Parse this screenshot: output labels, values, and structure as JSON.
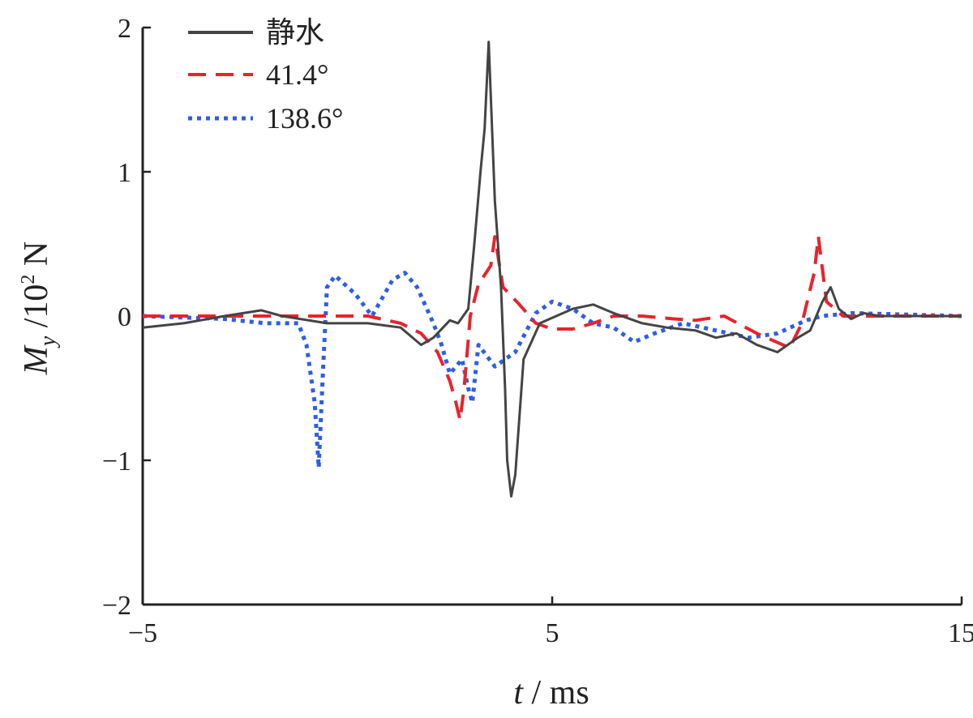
{
  "chart_data": {
    "type": "line",
    "xlabel": {
      "var": "t",
      "unit": "ms"
    },
    "ylabel": {
      "var": "M",
      "sub": "y",
      "unit_base": "10",
      "unit_exp": "2",
      "unit": "N"
    },
    "xlim": [
      -5,
      15
    ],
    "ylim": [
      -2,
      2
    ],
    "xticks": [
      -5,
      5,
      15
    ],
    "yticks": [
      -2,
      -1,
      0,
      1,
      2
    ],
    "x_tick_labels": [
      "−5",
      "5",
      "15"
    ],
    "y_tick_labels": [
      "−2",
      "−1",
      "0",
      "1",
      "2"
    ],
    "legend_position": "top-left",
    "series": [
      {
        "name": "静水",
        "color": "#444444",
        "style": "solid",
        "points": [
          [
            -5,
            -0.08
          ],
          [
            -4,
            -0.05
          ],
          [
            -3,
            0
          ],
          [
            -2.1,
            0.04
          ],
          [
            -1.6,
            0
          ],
          [
            -0.5,
            -0.05
          ],
          [
            0.5,
            -0.05
          ],
          [
            1.3,
            -0.08
          ],
          [
            1.8,
            -0.2
          ],
          [
            2.1,
            -0.15
          ],
          [
            2.5,
            -0.03
          ],
          [
            2.7,
            -0.05
          ],
          [
            2.95,
            0.05
          ],
          [
            3.1,
            0.5
          ],
          [
            3.25,
            1.0
          ],
          [
            3.35,
            1.3
          ],
          [
            3.45,
            1.9
          ],
          [
            3.6,
            0.8
          ],
          [
            3.75,
            0.2
          ],
          [
            3.85,
            -0.5
          ],
          [
            3.9,
            -1.0
          ],
          [
            4.0,
            -1.25
          ],
          [
            4.1,
            -1.1
          ],
          [
            4.3,
            -0.3
          ],
          [
            4.7,
            -0.05
          ],
          [
            5.5,
            0.05
          ],
          [
            6.0,
            0.08
          ],
          [
            6.5,
            0.02
          ],
          [
            7.2,
            -0.05
          ],
          [
            7.8,
            -0.08
          ],
          [
            8.5,
            -0.1
          ],
          [
            9.0,
            -0.15
          ],
          [
            9.5,
            -0.12
          ],
          [
            10.0,
            -0.2
          ],
          [
            10.5,
            -0.25
          ],
          [
            11.0,
            -0.15
          ],
          [
            11.3,
            -0.1
          ],
          [
            11.6,
            0.1
          ],
          [
            11.8,
            0.2
          ],
          [
            12.0,
            0.05
          ],
          [
            12.3,
            -0.02
          ],
          [
            12.6,
            0.02
          ],
          [
            13,
            0
          ],
          [
            14,
            0
          ],
          [
            15,
            0
          ]
        ]
      },
      {
        "name": "41.4°",
        "color": "#e8232b",
        "style": "dashed",
        "points": [
          [
            -5,
            0
          ],
          [
            -3,
            0
          ],
          [
            -1,
            0
          ],
          [
            0.5,
            0
          ],
          [
            1.3,
            -0.05
          ],
          [
            1.8,
            -0.12
          ],
          [
            2.2,
            -0.25
          ],
          [
            2.5,
            -0.45
          ],
          [
            2.65,
            -0.6
          ],
          [
            2.75,
            -0.72
          ],
          [
            2.85,
            -0.5
          ],
          [
            3.0,
            0
          ],
          [
            3.2,
            0.22
          ],
          [
            3.5,
            0.35
          ],
          [
            3.6,
            0.55
          ],
          [
            3.8,
            0.2
          ],
          [
            4.2,
            0.08
          ],
          [
            4.6,
            -0.05
          ],
          [
            5.0,
            -0.09
          ],
          [
            5.5,
            -0.09
          ],
          [
            6.0,
            -0.05
          ],
          [
            6.5,
            0
          ],
          [
            7.2,
            0
          ],
          [
            8,
            -0.02
          ],
          [
            8.5,
            -0.03
          ],
          [
            9.2,
            0
          ],
          [
            10.0,
            -0.12
          ],
          [
            10.8,
            -0.22
          ],
          [
            11.1,
            -0.05
          ],
          [
            11.4,
            0.3
          ],
          [
            11.5,
            0.55
          ],
          [
            11.7,
            0.1
          ],
          [
            12.1,
            0
          ],
          [
            15,
            0
          ]
        ]
      },
      {
        "name": "138.6°",
        "color": "#2e5ee6",
        "style": "dotted",
        "points": [
          [
            -5,
            0
          ],
          [
            -3,
            -0.02
          ],
          [
            -2,
            -0.05
          ],
          [
            -1.2,
            -0.05
          ],
          [
            -1.0,
            -0.2
          ],
          [
            -0.8,
            -0.6
          ],
          [
            -0.7,
            -1.05
          ],
          [
            -0.6,
            -0.4
          ],
          [
            -0.5,
            0.2
          ],
          [
            -0.3,
            0.28
          ],
          [
            0.2,
            0.15
          ],
          [
            0.6,
            0
          ],
          [
            1.1,
            0.25
          ],
          [
            1.4,
            0.3
          ],
          [
            1.7,
            0.2
          ],
          [
            2.1,
            -0.05
          ],
          [
            2.3,
            -0.2
          ],
          [
            2.5,
            -0.4
          ],
          [
            2.8,
            -0.3
          ],
          [
            2.95,
            -0.5
          ],
          [
            3.05,
            -0.6
          ],
          [
            3.2,
            -0.2
          ],
          [
            3.6,
            -0.35
          ],
          [
            4.1,
            -0.25
          ],
          [
            4.6,
            0.02
          ],
          [
            5.0,
            0.1
          ],
          [
            5.5,
            0.05
          ],
          [
            6.0,
            -0.05
          ],
          [
            6.5,
            -0.08
          ],
          [
            7.0,
            -0.18
          ],
          [
            7.5,
            -0.12
          ],
          [
            8.2,
            -0.05
          ],
          [
            9.0,
            -0.1
          ],
          [
            9.8,
            -0.15
          ],
          [
            10.5,
            -0.12
          ],
          [
            11.2,
            -0.03
          ],
          [
            11.6,
            0
          ],
          [
            12.3,
            0.02
          ],
          [
            15,
            0
          ]
        ]
      }
    ]
  }
}
